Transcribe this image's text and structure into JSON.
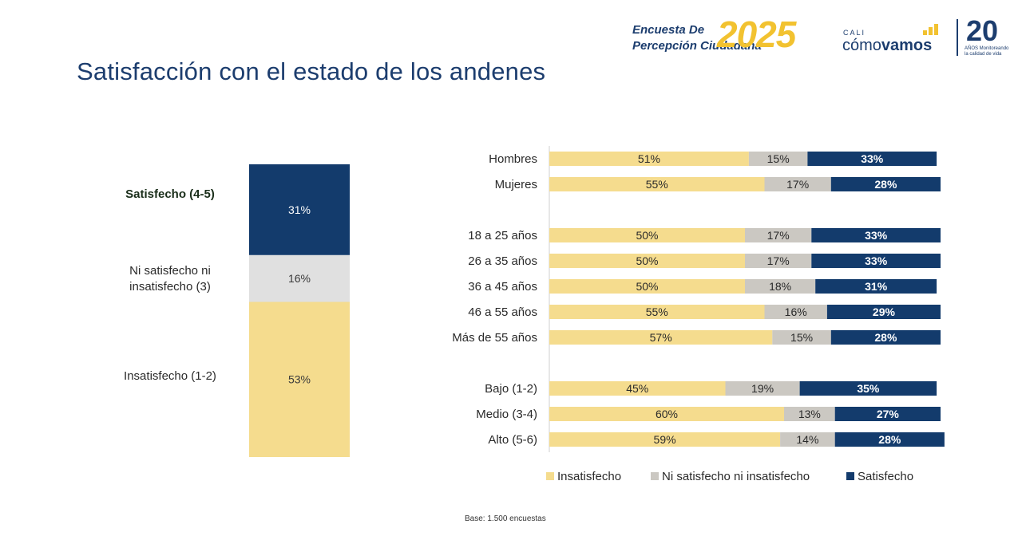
{
  "title": "Satisfacción con el estado de los andenes",
  "logos": {
    "survey_line1": "Encuesta De",
    "survey_line2": "Percepción Ciudadana",
    "year": "2025",
    "cali": "CALI",
    "como": "cómo",
    "vamos": "vamos",
    "anniversary": "20",
    "anniversary_sub": "AÑOS Monitoreando la calidad de vida"
  },
  "colors": {
    "insatisfecho": "#f5dc8e",
    "neutral": "#cbc8c2",
    "satisfecho": "#133b6c",
    "neutral_stack": "#e0e0e0"
  },
  "chart_data": [
    {
      "type": "bar",
      "stacked": true,
      "orientation": "vertical",
      "segments": [
        {
          "label": "Insatisfecho (1-2)",
          "value": 53,
          "text": "53%",
          "color_key": "insatisfecho"
        },
        {
          "label": "Ni satisfecho ni insatisfecho (3)",
          "value": 16,
          "text": "16%",
          "color_key": "neutral_stack"
        },
        {
          "label": "Satisfecho (4-5)",
          "value": 31,
          "text": "31%",
          "color_key": "satisfecho"
        }
      ]
    },
    {
      "type": "bar",
      "stacked": true,
      "orientation": "horizontal",
      "series_names": [
        "Insatisfecho",
        "Ni satisfecho ni insatisfecho",
        "Satisfecho"
      ],
      "groups": [
        {
          "categories": [
            {
              "label": "Hombres",
              "values": [
                51,
                15,
                33
              ]
            },
            {
              "label": "Mujeres",
              "values": [
                55,
                17,
                28
              ]
            }
          ]
        },
        {
          "categories": [
            {
              "label": "18 a 25 años",
              "values": [
                50,
                17,
                33
              ]
            },
            {
              "label": "26 a 35 años",
              "values": [
                50,
                17,
                33
              ]
            },
            {
              "label": "36 a 45 años",
              "values": [
                50,
                18,
                31
              ]
            },
            {
              "label": "46 a 55 años",
              "values": [
                55,
                16,
                29
              ]
            },
            {
              "label": "Más de 55 años",
              "values": [
                57,
                15,
                28
              ]
            }
          ]
        },
        {
          "categories": [
            {
              "label": "Bajo (1-2)",
              "values": [
                45,
                19,
                35
              ]
            },
            {
              "label": "Medio (3-4)",
              "values": [
                60,
                13,
                27
              ]
            },
            {
              "label": "Alto (5-6)",
              "values": [
                59,
                14,
                28
              ]
            }
          ]
        }
      ],
      "legend_position": "bottom"
    }
  ],
  "footnote": "Base: 1.500 encuestas"
}
